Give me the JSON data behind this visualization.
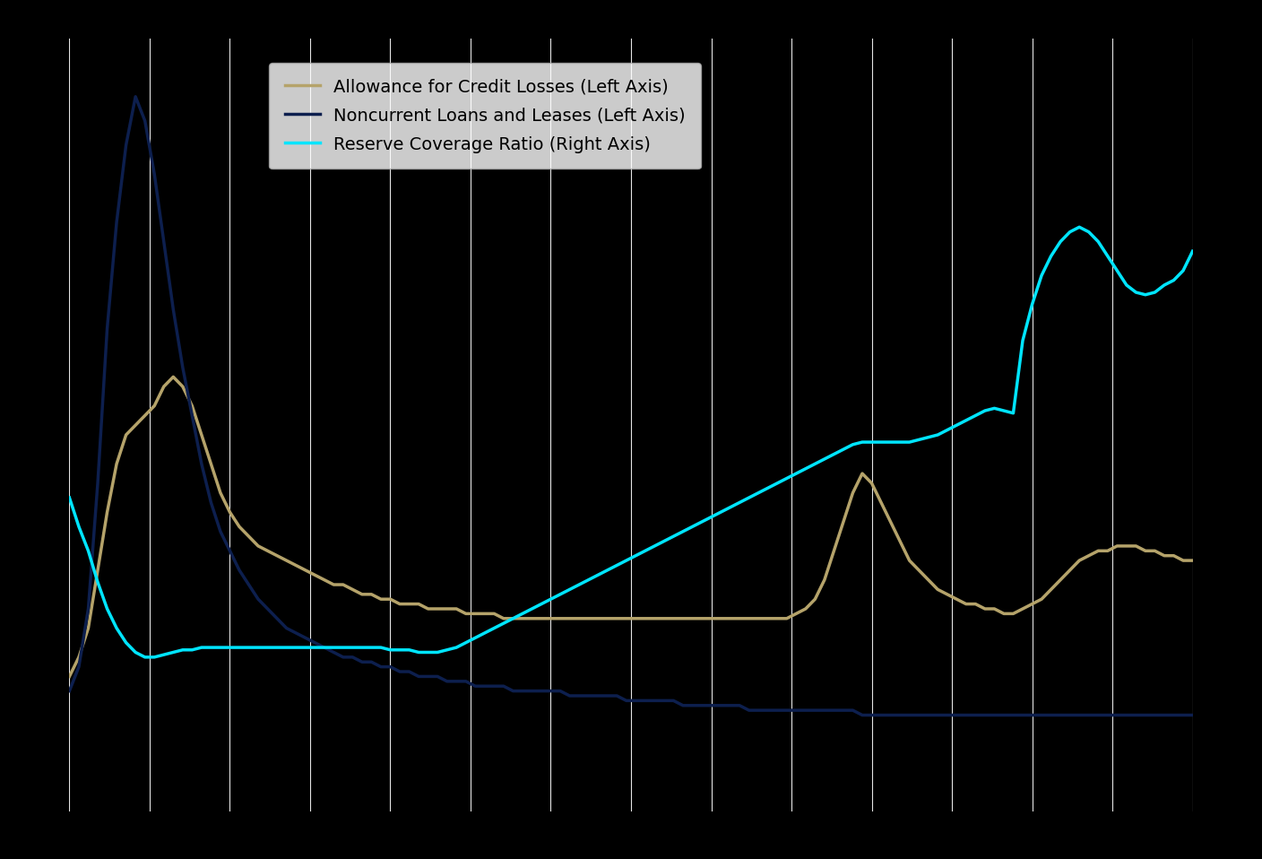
{
  "background_color": "#000000",
  "plot_bg_color": "#000000",
  "legend_bg": "#ffffff",
  "legend_text_color": "#000000",
  "grid_color": "#ffffff",
  "line_allowance_color": "#b5a36a",
  "line_noncurrent_color": "#0d1f4e",
  "line_reserve_color": "#00e5ff",
  "line_allowance_label": "Allowance for Credit Losses (Left Axis)",
  "line_noncurrent_label": "Noncurrent Loans and Leases (Left Axis)",
  "line_reserve_label": "Reserve Coverage Ratio (Right Axis)",
  "n_vgrid": 14,
  "ylim_left": [
    0,
    160
  ],
  "ylim_right": [
    0,
    320
  ],
  "allowance": [
    28,
    32,
    38,
    50,
    62,
    72,
    78,
    80,
    82,
    84,
    88,
    90,
    88,
    84,
    78,
    72,
    66,
    62,
    59,
    57,
    55,
    54,
    53,
    52,
    51,
    50,
    49,
    48,
    47,
    47,
    46,
    45,
    45,
    44,
    44,
    43,
    43,
    43,
    42,
    42,
    42,
    42,
    41,
    41,
    41,
    41,
    40,
    40,
    40,
    40,
    40,
    40,
    40,
    40,
    40,
    40,
    40,
    40,
    40,
    40,
    40,
    40,
    40,
    40,
    40,
    40,
    40,
    40,
    40,
    40,
    40,
    40,
    40,
    40,
    40,
    40,
    40,
    41,
    42,
    44,
    48,
    54,
    60,
    66,
    70,
    68,
    64,
    60,
    56,
    52,
    50,
    48,
    46,
    45,
    44,
    43,
    43,
    42,
    42,
    41,
    41,
    42,
    43,
    44,
    46,
    48,
    50,
    52,
    53,
    54,
    54,
    55,
    55,
    55,
    54,
    54,
    53,
    53,
    52,
    52
  ],
  "noncurrent": [
    25,
    30,
    42,
    68,
    100,
    122,
    138,
    148,
    143,
    132,
    118,
    104,
    92,
    82,
    72,
    64,
    58,
    54,
    50,
    47,
    44,
    42,
    40,
    38,
    37,
    36,
    35,
    34,
    33,
    32,
    32,
    31,
    31,
    30,
    30,
    29,
    29,
    28,
    28,
    28,
    27,
    27,
    27,
    26,
    26,
    26,
    26,
    25,
    25,
    25,
    25,
    25,
    25,
    24,
    24,
    24,
    24,
    24,
    24,
    23,
    23,
    23,
    23,
    23,
    23,
    22,
    22,
    22,
    22,
    22,
    22,
    22,
    21,
    21,
    21,
    21,
    21,
    21,
    21,
    21,
    21,
    21,
    21,
    21,
    20,
    20,
    20,
    20,
    20,
    20,
    20,
    20,
    20,
    20,
    20,
    20,
    20,
    20,
    20,
    20,
    20,
    20,
    20,
    20,
    20,
    20,
    20,
    20,
    20,
    20,
    20,
    20,
    20,
    20,
    20,
    20,
    20,
    20,
    20,
    20
  ],
  "reserve": [
    130,
    118,
    108,
    95,
    84,
    76,
    70,
    66,
    64,
    64,
    65,
    66,
    67,
    67,
    68,
    68,
    68,
    68,
    68,
    68,
    68,
    68,
    68,
    68,
    68,
    68,
    68,
    68,
    68,
    68,
    68,
    68,
    68,
    68,
    67,
    67,
    67,
    66,
    66,
    66,
    67,
    68,
    70,
    72,
    74,
    76,
    78,
    80,
    82,
    84,
    86,
    88,
    90,
    92,
    94,
    96,
    98,
    100,
    102,
    104,
    106,
    108,
    110,
    112,
    114,
    116,
    118,
    120,
    122,
    124,
    126,
    128,
    130,
    132,
    134,
    136,
    138,
    140,
    142,
    144,
    146,
    148,
    150,
    152,
    153,
    153,
    153,
    153,
    153,
    153,
    154,
    155,
    156,
    158,
    160,
    162,
    164,
    166,
    167,
    166,
    165,
    195,
    210,
    222,
    230,
    236,
    240,
    242,
    240,
    236,
    230,
    224,
    218,
    215,
    214,
    215,
    218,
    220,
    224,
    232
  ]
}
